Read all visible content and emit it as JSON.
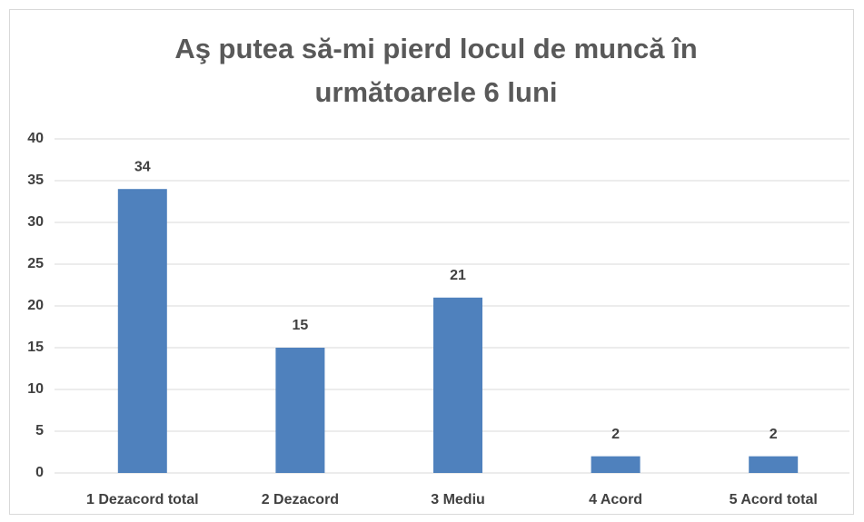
{
  "chart_data": {
    "type": "bar",
    "title": "Aş putea să-mi pierd locul de muncă în următoarele 6 luni",
    "categories": [
      "1 Dezacord total",
      "2 Dezacord",
      "3 Mediu",
      "4 Acord",
      "5 Acord total"
    ],
    "values": [
      34,
      15,
      21,
      2,
      2
    ],
    "color": "#4f81bd",
    "ylim": [
      0,
      40
    ],
    "yticks": [
      0,
      5,
      10,
      15,
      20,
      25,
      30,
      35,
      40
    ],
    "grid": true
  }
}
